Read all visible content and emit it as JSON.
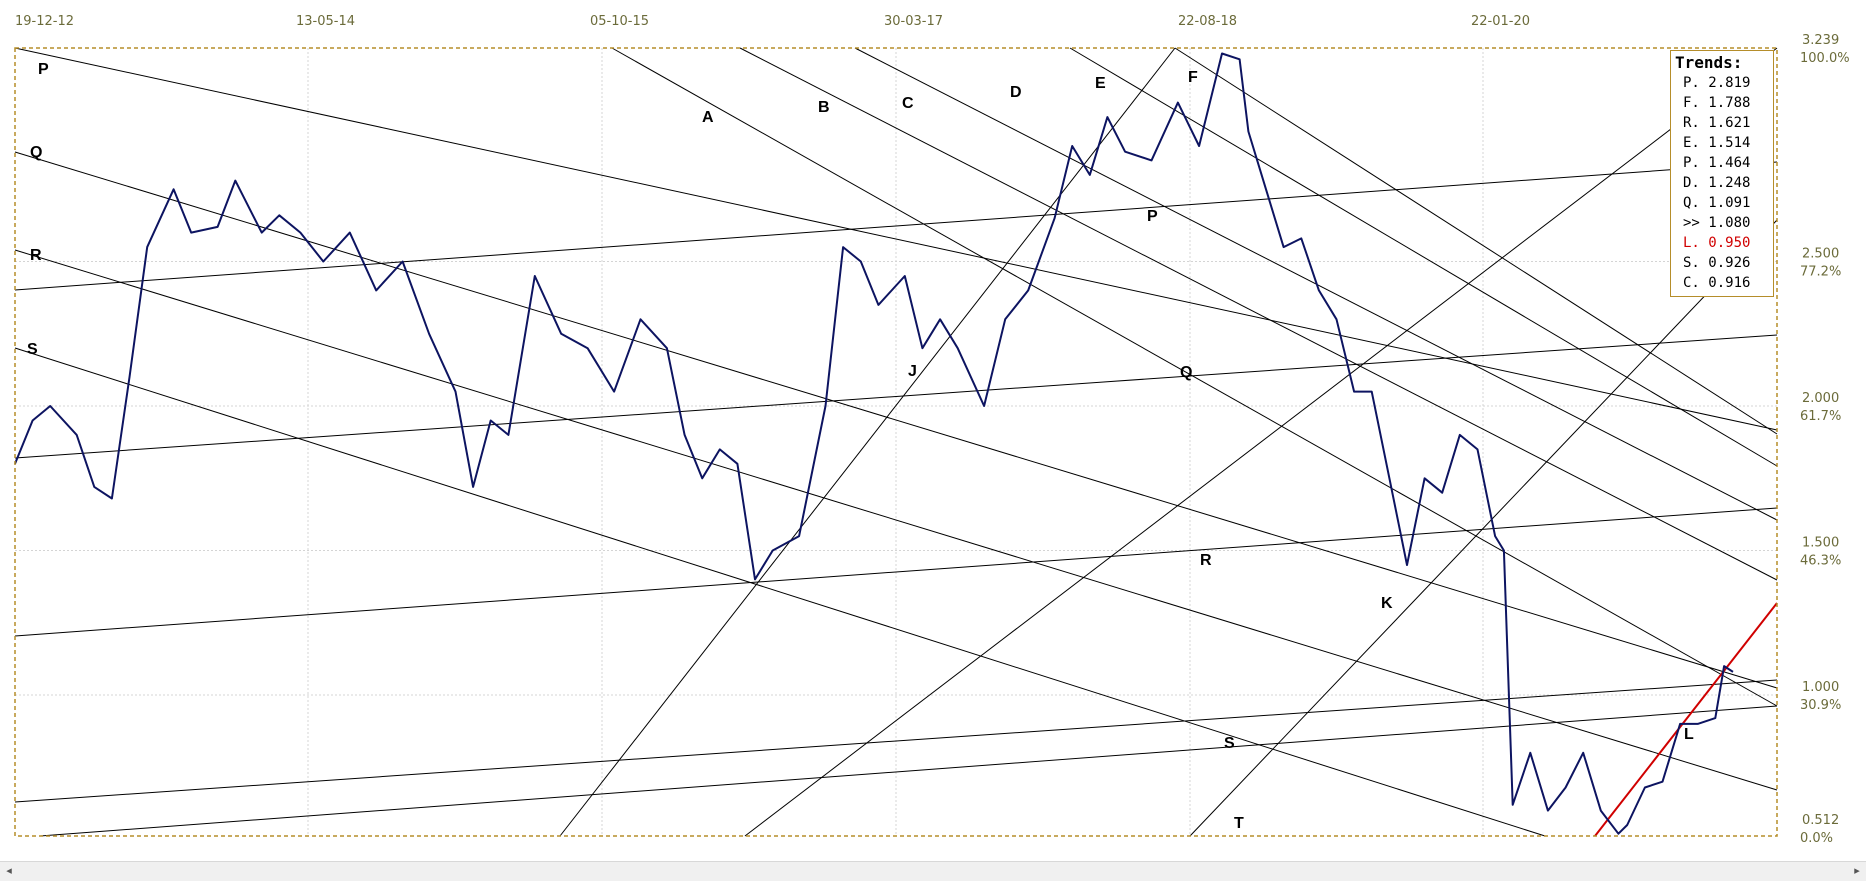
{
  "chart_data": {
    "type": "line",
    "x_ticks": [
      "19-12-12",
      "13-05-14",
      "05-10-15",
      "30-03-17",
      "22-08-18",
      "22-01-20"
    ],
    "y_ticks": [
      {
        "value": 3.239,
        "label": "3.239",
        "pct": "100.0%"
      },
      {
        "value": 2.5,
        "label": "2.500",
        "pct": "77.2%"
      },
      {
        "value": 2.0,
        "label": "2.000",
        "pct": "61.7%"
      },
      {
        "value": 1.5,
        "label": "1.500",
        "pct": "46.3%"
      },
      {
        "value": 1.0,
        "label": "1.000",
        "pct": "30.9%"
      },
      {
        "value": 0.512,
        "label": "0.512",
        "pct": "0.0%"
      }
    ],
    "ylim": [
      0.512,
      3.239
    ],
    "grid": true,
    "series": [
      {
        "values": [
          [
            0,
            1.8
          ],
          [
            0.01,
            1.95
          ],
          [
            0.02,
            2.0
          ],
          [
            0.035,
            1.9
          ],
          [
            0.045,
            1.72
          ],
          [
            0.055,
            1.68
          ],
          [
            0.065,
            2.1
          ],
          [
            0.075,
            2.55
          ],
          [
            0.09,
            2.75
          ],
          [
            0.1,
            2.6
          ],
          [
            0.115,
            2.62
          ],
          [
            0.125,
            2.78
          ],
          [
            0.14,
            2.6
          ],
          [
            0.15,
            2.66
          ],
          [
            0.162,
            2.6
          ],
          [
            0.175,
            2.5
          ],
          [
            0.19,
            2.6
          ],
          [
            0.205,
            2.4
          ],
          [
            0.22,
            2.5
          ],
          [
            0.235,
            2.25
          ],
          [
            0.25,
            2.05
          ],
          [
            0.26,
            1.72
          ],
          [
            0.27,
            1.95
          ],
          [
            0.28,
            1.9
          ],
          [
            0.295,
            2.45
          ],
          [
            0.31,
            2.25
          ],
          [
            0.325,
            2.2
          ],
          [
            0.34,
            2.05
          ],
          [
            0.355,
            2.3
          ],
          [
            0.37,
            2.2
          ],
          [
            0.38,
            1.9
          ],
          [
            0.39,
            1.75
          ],
          [
            0.4,
            1.85
          ],
          [
            0.41,
            1.8
          ],
          [
            0.42,
            1.4
          ],
          [
            0.43,
            1.5
          ],
          [
            0.445,
            1.55
          ],
          [
            0.46,
            2.0
          ],
          [
            0.47,
            2.55
          ],
          [
            0.48,
            2.5
          ],
          [
            0.49,
            2.35
          ],
          [
            0.505,
            2.45
          ],
          [
            0.515,
            2.2
          ],
          [
            0.525,
            2.3
          ],
          [
            0.535,
            2.2
          ],
          [
            0.55,
            2.0
          ],
          [
            0.562,
            2.3
          ],
          [
            0.575,
            2.4
          ],
          [
            0.59,
            2.65
          ],
          [
            0.6,
            2.9
          ],
          [
            0.61,
            2.8
          ],
          [
            0.62,
            3.0
          ],
          [
            0.63,
            2.88
          ],
          [
            0.645,
            2.85
          ],
          [
            0.66,
            3.05
          ],
          [
            0.672,
            2.9
          ],
          [
            0.685,
            3.22
          ],
          [
            0.695,
            3.2
          ],
          [
            0.7,
            2.95
          ],
          [
            0.71,
            2.75
          ],
          [
            0.72,
            2.55
          ],
          [
            0.73,
            2.58
          ],
          [
            0.74,
            2.4
          ],
          [
            0.75,
            2.3
          ],
          [
            0.76,
            2.05
          ],
          [
            0.77,
            2.05
          ],
          [
            0.78,
            1.75
          ],
          [
            0.79,
            1.45
          ],
          [
            0.8,
            1.75
          ],
          [
            0.81,
            1.7
          ],
          [
            0.82,
            1.9
          ],
          [
            0.83,
            1.85
          ],
          [
            0.84,
            1.55
          ],
          [
            0.845,
            1.5
          ],
          [
            0.85,
            0.62
          ],
          [
            0.86,
            0.8
          ],
          [
            0.87,
            0.6
          ],
          [
            0.88,
            0.68
          ],
          [
            0.89,
            0.8
          ],
          [
            0.9,
            0.6
          ],
          [
            0.91,
            0.52
          ],
          [
            0.915,
            0.55
          ],
          [
            0.925,
            0.68
          ],
          [
            0.935,
            0.7
          ],
          [
            0.945,
            0.9
          ],
          [
            0.955,
            0.9
          ],
          [
            0.965,
            0.92
          ],
          [
            0.97,
            1.1
          ],
          [
            0.975,
            1.08
          ]
        ]
      }
    ],
    "trend_labels": [
      {
        "text": "P"
      },
      {
        "text": "Q"
      },
      {
        "text": "R"
      },
      {
        "text": "S"
      },
      {
        "text": "A"
      },
      {
        "text": "B"
      },
      {
        "text": "C"
      },
      {
        "text": "D"
      },
      {
        "text": "E"
      },
      {
        "text": "F"
      },
      {
        "text": "P"
      },
      {
        "text": "Q"
      },
      {
        "text": "R"
      },
      {
        "text": "S"
      },
      {
        "text": "T"
      },
      {
        "text": "J"
      },
      {
        "text": "K"
      },
      {
        "text": "L",
        "color": "#d00000"
      }
    ],
    "legend_title": "Trends:",
    "legend": [
      {
        "text": "P. 2.819"
      },
      {
        "text": "F. 1.788"
      },
      {
        "text": "R. 1.621"
      },
      {
        "text": "E. 1.514"
      },
      {
        "text": "P. 1.464"
      },
      {
        "text": "D. 1.248"
      },
      {
        "text": "Q. 1.091"
      },
      {
        "text": ">> 1.080"
      },
      {
        "text": "L. 0.950",
        "color": "#d00000"
      },
      {
        "text": "S. 0.926"
      },
      {
        "text": "C. 0.916"
      }
    ],
    "colors": {
      "series": "#0d1461",
      "trend_lines": "#000000",
      "trend_red": "#d00000",
      "frame": "#b58d2a",
      "axis_text": "#6b6b3a"
    }
  },
  "scrollbar": {
    "left_arrow": "◂",
    "right_arrow": "▸"
  }
}
